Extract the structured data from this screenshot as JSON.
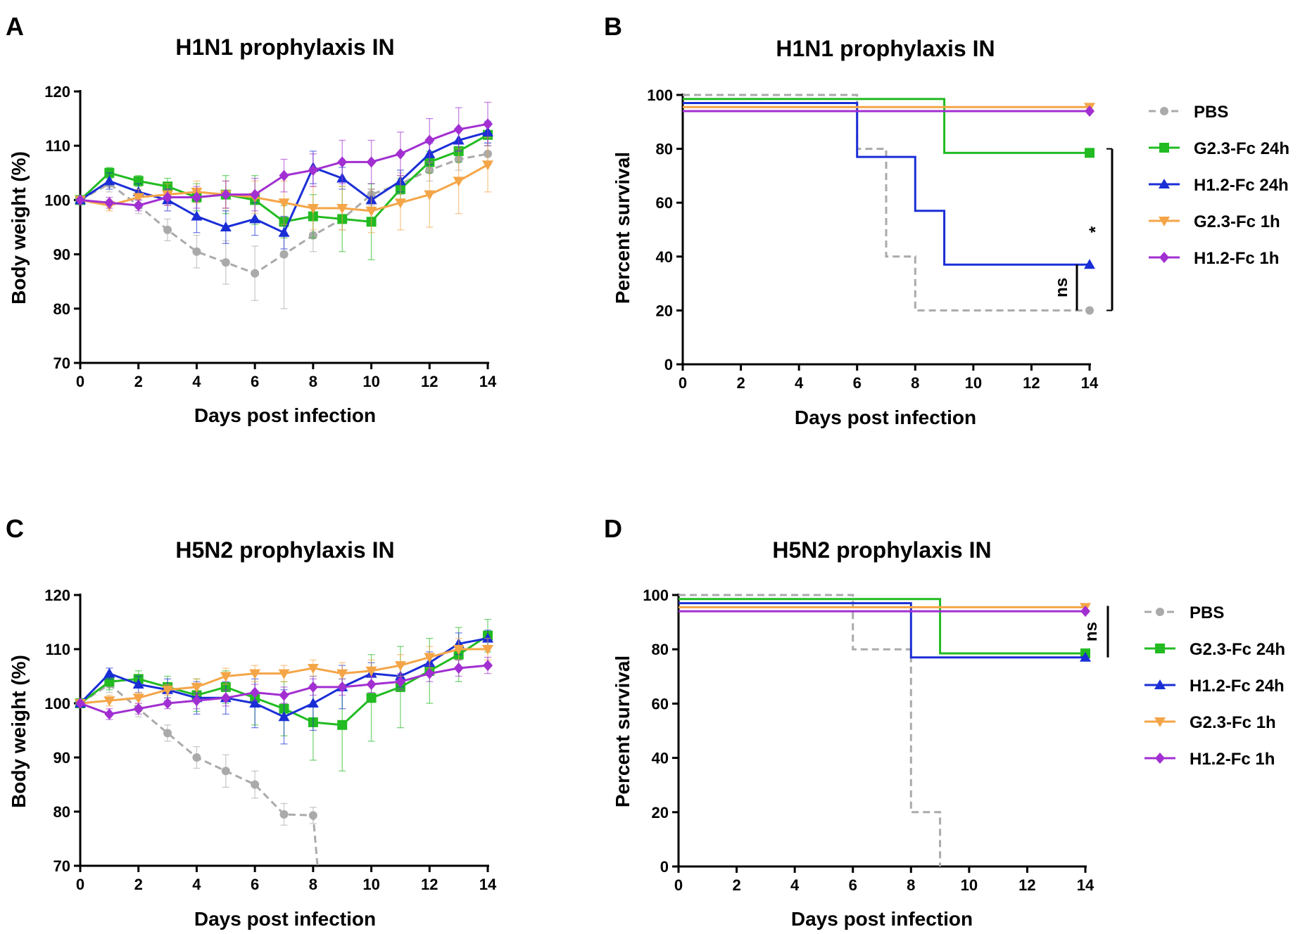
{
  "chart_data": [
    {
      "panel": "A",
      "type": "line",
      "title": "H1N1 prophylaxis IN",
      "xlabel": "Days post infection",
      "ylabel": "Body weight (%)",
      "xlim": [
        0,
        14
      ],
      "ylim": [
        70,
        120
      ],
      "xticks": [
        0,
        2,
        4,
        6,
        8,
        10,
        12,
        14
      ],
      "yticks": [
        70,
        80,
        90,
        100,
        110,
        120
      ],
      "series": [
        {
          "name": "PBS",
          "color": "#aaaaaa",
          "dashed": true,
          "marker": "circle",
          "x": [
            0,
            1,
            2,
            3,
            4,
            5,
            6,
            7,
            8,
            9,
            10,
            11,
            12,
            13,
            14
          ],
          "y": [
            100,
            103,
            99,
            94.5,
            90.5,
            88.5,
            86.5,
            90,
            93.5,
            96.5,
            101,
            103,
            105.5,
            107.5,
            108.5
          ],
          "err": [
            0,
            1.5,
            1.5,
            2,
            3,
            4,
            5,
            10,
            3,
            2,
            2,
            2,
            2,
            2,
            2
          ]
        },
        {
          "name": "G2.3-Fc 24h",
          "color": "#22bb22",
          "dashed": false,
          "marker": "square",
          "x": [
            0,
            1,
            2,
            3,
            4,
            5,
            6,
            7,
            8,
            9,
            10,
            11,
            12,
            13,
            14
          ],
          "y": [
            100,
            105,
            103.5,
            102.5,
            100.5,
            101,
            100,
            96,
            97,
            96.5,
            96,
            102,
            107,
            109,
            112
          ],
          "err": [
            0,
            1,
            1,
            1.5,
            2.5,
            3.5,
            4.5,
            3,
            4,
            6,
            7,
            2,
            2,
            2,
            2
          ]
        },
        {
          "name": "H1.2-Fc 24h",
          "color": "#1a2ed6",
          "dashed": false,
          "marker": "triangle-up",
          "x": [
            0,
            1,
            2,
            3,
            4,
            5,
            6,
            7,
            8,
            9,
            10,
            11,
            12,
            13,
            14
          ],
          "y": [
            100,
            103.5,
            101.5,
            100,
            97,
            95,
            96.5,
            94,
            106,
            104,
            100,
            103.5,
            108.5,
            111,
            112.5
          ],
          "err": [
            0,
            1.5,
            1.5,
            2,
            3,
            3,
            3,
            3,
            3,
            2,
            2,
            2,
            2,
            2,
            2
          ]
        },
        {
          "name": "G2.3-Fc 1h",
          "color": "#f4a547",
          "dashed": false,
          "marker": "triangle-down",
          "x": [
            0,
            1,
            2,
            3,
            4,
            5,
            6,
            7,
            8,
            9,
            10,
            11,
            12,
            13,
            14
          ],
          "y": [
            100,
            99,
            100.5,
            101,
            101.5,
            101,
            100.5,
            99.5,
            98.5,
            98.5,
            98,
            99.5,
            101,
            103.5,
            106.5
          ],
          "err": [
            0,
            1,
            1.5,
            2,
            2,
            2.5,
            3,
            4,
            4,
            4,
            4,
            5,
            6,
            6,
            5
          ]
        },
        {
          "name": "H1.2-Fc 1h",
          "color": "#a22fd1",
          "dashed": false,
          "marker": "diamond",
          "x": [
            0,
            1,
            2,
            3,
            4,
            5,
            6,
            7,
            8,
            9,
            10,
            11,
            12,
            13,
            14
          ],
          "y": [
            100,
            99.5,
            99,
            100.5,
            100.5,
            101,
            101,
            104.5,
            105.5,
            107,
            107,
            108.5,
            111,
            113,
            114
          ],
          "err": [
            0,
            1,
            1,
            1.5,
            2,
            2.5,
            3,
            3,
            3,
            4,
            4,
            4,
            4,
            4,
            4
          ]
        }
      ]
    },
    {
      "panel": "B",
      "type": "line",
      "title": "H1N1 prophylaxis IN",
      "xlabel": "Days post infection",
      "ylabel": "Percent survival",
      "xlim": [
        0,
        14
      ],
      "ylim": [
        0,
        100
      ],
      "xticks": [
        0,
        2,
        4,
        6,
        8,
        10,
        12,
        14
      ],
      "yticks": [
        0,
        20,
        40,
        60,
        80,
        100
      ],
      "series": [
        {
          "name": "PBS",
          "color": "#aaaaaa",
          "dashed": true,
          "marker": "circle",
          "steps": [
            [
              0,
              100
            ],
            [
              6,
              80
            ],
            [
              7,
              40
            ],
            [
              8,
              20
            ],
            [
              14,
              20
            ]
          ]
        },
        {
          "name": "G2.3-Fc 24h",
          "color": "#22bb22",
          "dashed": false,
          "marker": "square",
          "steps": [
            [
              0,
              98.5
            ],
            [
              9,
              78.5
            ],
            [
              14,
              78.5
            ]
          ]
        },
        {
          "name": "H1.2-Fc 24h",
          "color": "#1a2ed6",
          "dashed": false,
          "marker": "triangle-up",
          "steps": [
            [
              0,
              97
            ],
            [
              6,
              77
            ],
            [
              8,
              57
            ],
            [
              9,
              37
            ],
            [
              14,
              37
            ]
          ]
        },
        {
          "name": "G2.3-Fc 1h",
          "color": "#f4a547",
          "dashed": false,
          "marker": "triangle-down",
          "steps": [
            [
              0,
              95.5
            ],
            [
              14,
              95.5
            ]
          ]
        },
        {
          "name": "H1.2-Fc 1h",
          "color": "#a22fd1",
          "dashed": false,
          "marker": "diamond",
          "steps": [
            [
              0,
              94
            ],
            [
              14,
              94
            ]
          ]
        }
      ],
      "annotations": [
        {
          "label": "ns",
          "between": [
            20,
            37
          ],
          "tier": "inner"
        },
        {
          "label": "*",
          "between": [
            20,
            80
          ],
          "tier": "outer"
        }
      ]
    },
    {
      "panel": "C",
      "type": "line",
      "title": "H5N2 prophylaxis IN",
      "xlabel": "Days post infection",
      "ylabel": "Body weight (%)",
      "xlim": [
        0,
        14
      ],
      "ylim": [
        70,
        120
      ],
      "xticks": [
        0,
        2,
        4,
        6,
        8,
        10,
        12,
        14
      ],
      "yticks": [
        70,
        80,
        90,
        100,
        110,
        120
      ],
      "series": [
        {
          "name": "PBS",
          "color": "#aaaaaa",
          "dashed": true,
          "marker": "circle",
          "x": [
            0,
            1,
            2,
            3,
            4,
            5,
            6,
            7,
            8,
            8.15
          ],
          "y": [
            100,
            103.5,
            99,
            94.5,
            90,
            87.5,
            85,
            79.5,
            79.3,
            70
          ],
          "err": [
            0,
            1.5,
            1.5,
            1.5,
            2,
            3,
            2.5,
            2,
            1.5,
            0
          ],
          "markerCount": 9
        },
        {
          "name": "G2.3-Fc 24h",
          "color": "#22bb22",
          "dashed": false,
          "marker": "square",
          "x": [
            0,
            1,
            2,
            3,
            4,
            5,
            6,
            7,
            8,
            9,
            10,
            11,
            12,
            13,
            14
          ],
          "y": [
            100,
            104,
            104.5,
            103,
            101.5,
            103,
            101,
            99,
            96.5,
            96,
            101,
            103,
            106,
            109,
            112.5
          ],
          "err": [
            0,
            1.5,
            1.5,
            2,
            3,
            3,
            5,
            5,
            7,
            8.5,
            8,
            7.5,
            6,
            5,
            3
          ]
        },
        {
          "name": "H1.2-Fc 24h",
          "color": "#1a2ed6",
          "dashed": false,
          "marker": "triangle-up",
          "x": [
            0,
            1,
            2,
            3,
            4,
            5,
            6,
            7,
            8,
            9,
            10,
            11,
            12,
            13,
            14
          ],
          "y": [
            100,
            105.5,
            103.5,
            102.5,
            101,
            101,
            100,
            97.5,
            100,
            103,
            105.5,
            105,
            107.5,
            111,
            112
          ],
          "err": [
            0,
            1,
            1.5,
            2,
            3,
            3,
            4.5,
            5,
            5,
            4,
            2,
            2,
            2,
            2,
            1.5
          ]
        },
        {
          "name": "G2.3-Fc 1h",
          "color": "#f4a547",
          "dashed": false,
          "marker": "triangle-down",
          "x": [
            0,
            1,
            2,
            3,
            4,
            5,
            6,
            7,
            8,
            9,
            10,
            11,
            12,
            13,
            14
          ],
          "y": [
            100,
            100.5,
            101,
            102.5,
            103,
            105,
            105.5,
            105.5,
            106.5,
            105.5,
            106,
            107,
            108.5,
            110,
            110
          ],
          "err": [
            0,
            1,
            1,
            1,
            1.5,
            1.5,
            1.5,
            1.5,
            1.5,
            2,
            2,
            2,
            2,
            2,
            2
          ]
        },
        {
          "name": "H1.2-Fc 1h",
          "color": "#a22fd1",
          "dashed": false,
          "marker": "diamond",
          "x": [
            0,
            1,
            2,
            3,
            4,
            5,
            6,
            7,
            8,
            9,
            10,
            11,
            12,
            13,
            14
          ],
          "y": [
            100,
            98,
            99,
            100,
            100.5,
            101,
            102,
            101.5,
            103,
            103,
            103.5,
            104,
            105.5,
            106.5,
            107
          ],
          "err": [
            0,
            1,
            1,
            1,
            1.5,
            1.5,
            1.5,
            1.5,
            1.5,
            1.5,
            1.5,
            1.5,
            1.5,
            1.5,
            1.5
          ]
        }
      ]
    },
    {
      "panel": "D",
      "type": "line",
      "title": "H5N2 prophylaxis IN",
      "xlabel": "Days post infection",
      "ylabel": "Percent survival",
      "xlim": [
        0,
        14
      ],
      "ylim": [
        0,
        100
      ],
      "xticks": [
        0,
        2,
        4,
        6,
        8,
        10,
        12,
        14
      ],
      "yticks": [
        0,
        20,
        40,
        60,
        80,
        100
      ],
      "series": [
        {
          "name": "PBS",
          "color": "#aaaaaa",
          "dashed": true,
          "marker": "circle",
          "steps": [
            [
              0,
              100
            ],
            [
              6,
              80
            ],
            [
              8,
              20
            ],
            [
              9,
              0
            ]
          ],
          "noEndMarker": true
        },
        {
          "name": "G2.3-Fc 24h",
          "color": "#22bb22",
          "dashed": false,
          "marker": "square",
          "steps": [
            [
              0,
              98.5
            ],
            [
              9,
              78.5
            ],
            [
              14,
              78.5
            ]
          ]
        },
        {
          "name": "H1.2-Fc 24h",
          "color": "#1a2ed6",
          "dashed": false,
          "marker": "triangle-up",
          "steps": [
            [
              0,
              97
            ],
            [
              8,
              77
            ],
            [
              14,
              77
            ]
          ]
        },
        {
          "name": "G2.3-Fc 1h",
          "color": "#f4a547",
          "dashed": false,
          "marker": "triangle-down",
          "steps": [
            [
              0,
              95.5
            ],
            [
              14,
              95.5
            ]
          ]
        },
        {
          "name": "H1.2-Fc 1h",
          "color": "#a22fd1",
          "dashed": false,
          "marker": "diamond",
          "steps": [
            [
              0,
              94
            ],
            [
              14,
              94
            ]
          ]
        }
      ],
      "annotations": [
        {
          "label": "ns",
          "between": [
            77,
            96
          ],
          "tier": "outer"
        }
      ]
    }
  ]
}
